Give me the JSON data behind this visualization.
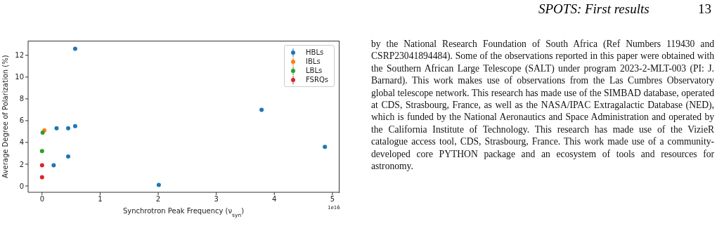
{
  "chart_data": {
    "type": "scatter",
    "xlabel": "Synchrotron Peak Frequency (ν$_{syn}$)",
    "ylabel": "Average Degree of Polarization (%)",
    "xlim": [
      -0.24,
      5.11
    ],
    "xticks": [
      0,
      1,
      2,
      3,
      4,
      5
    ],
    "ylim": [
      -0.58,
      13.34
    ],
    "yticks": [
      0,
      2,
      4,
      6,
      8,
      10,
      12
    ],
    "series": [
      {
        "name": "HBLs",
        "color": "#1f77b4",
        "x": [
          0.57,
          0.25,
          0.45,
          0.57,
          0.45,
          0.2,
          2.01,
          3.78,
          4.87
        ],
        "values": [
          12.6,
          5.3,
          5.3,
          5.5,
          2.7,
          1.9,
          0.1,
          7.0,
          3.6
        ]
      },
      {
        "name": "IBLs",
        "color": "#ff7f0e",
        "x": [
          0.04
        ],
        "values": [
          5.1
        ]
      },
      {
        "name": "LBLs",
        "color": "#2ca02c",
        "x": [
          0.01,
          0
        ],
        "values": [
          4.9,
          3.2
        ]
      },
      {
        "name": "FSRQs",
        "color": "#d62728",
        "x": [
          0,
          0
        ],
        "values": [
          1.9,
          0.8
        ]
      }
    ],
    "marker": "circle",
    "legend": "top right",
    "annotations": [
      "1e16",
      "SPOTS: First results",
      "13",
      "by the National Research Foundation of South Africa (Ref Numbers 119430 and CSRP23041894484). Some of the observations reported in this paper were obtained with the Southern African Large Telescope (SALT) under program 2023-2-MLT-003 (PI: J. Barnard). This work makes use of observations from the Las Cumbres Observatory global telescope network. This research has made use of the SIMBAD database, operated at CDS, Strasbourg, France, as well as the NASA/IPAC Extragalactic Database (NED), which is funded by the National Aeronautics and Space Administration and operated by the California Institute of Technology. This research has made use of the VizieR catalogue access tool, CDS, Strasbourg, France. This work made use of a community-developed core PYTHON package and an ecosystem of tools and resources for astronomy."
    ]
  }
}
